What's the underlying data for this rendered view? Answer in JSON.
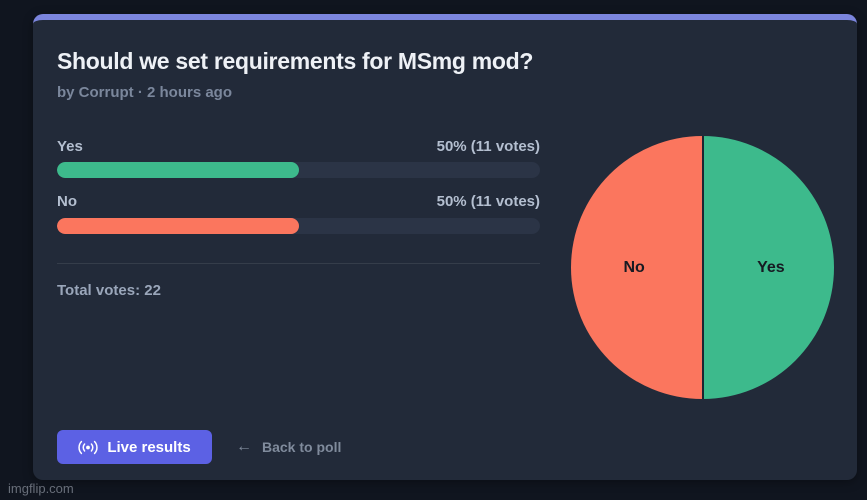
{
  "page": {
    "watermark": "imgflip.com"
  },
  "poll": {
    "title": "Should we set requirements for MSmg mod?",
    "byline": "by Corrupt · 2 hours ago",
    "options": [
      {
        "label": "Yes",
        "result": "50% (11 votes)",
        "percent": 50,
        "votes": 11,
        "color": "#3dba8c"
      },
      {
        "label": "No",
        "result": "50% (11 votes)",
        "percent": 50,
        "votes": 11,
        "color": "#fb765e"
      }
    ],
    "total_votes_label": "Total votes: 22",
    "total_votes": 22
  },
  "actions": {
    "live_results_label": "Live results",
    "back_arrow": "←",
    "back_label": "Back to poll"
  },
  "colors": {
    "accent_purple": "#5c61e4",
    "top_border_purple": "#7b85dd",
    "yes_green": "#3dba8c",
    "no_salmon": "#fb765e",
    "card_bg": "#222a39",
    "page_bg": "#10151f"
  },
  "chart_data": {
    "type": "pie",
    "title": "",
    "legend_position": "none",
    "labels_inside": true,
    "total": 22,
    "slices": [
      {
        "label": "Yes",
        "value": 11,
        "percent": 50,
        "color": "#3dba8c",
        "position": "right-half"
      },
      {
        "label": "No",
        "value": 11,
        "percent": 50,
        "color": "#fb765e",
        "position": "left-half"
      }
    ]
  }
}
